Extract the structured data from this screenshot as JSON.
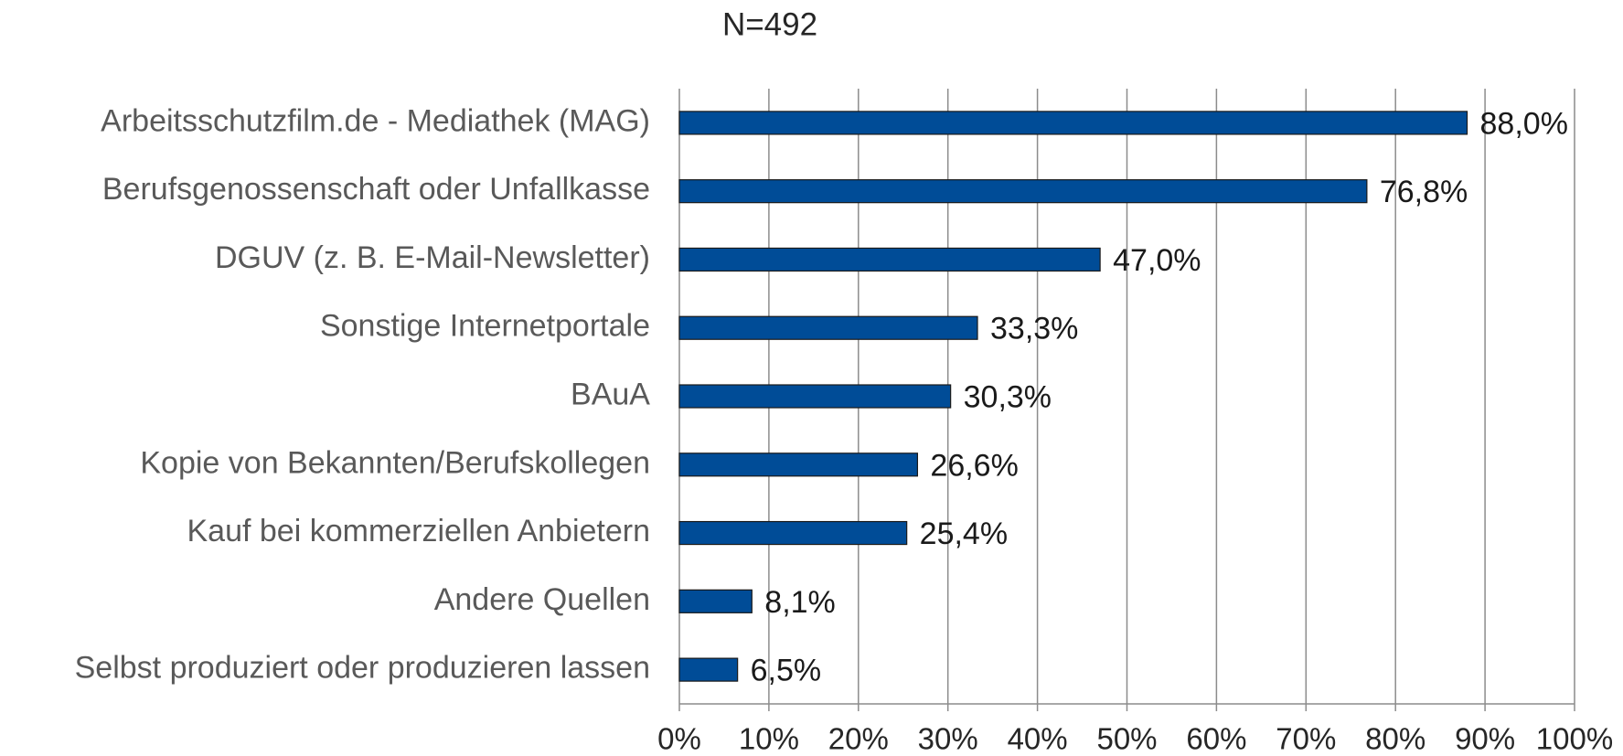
{
  "chart_data": {
    "type": "bar",
    "orientation": "horizontal",
    "title": "N=492",
    "categories": [
      "Arbeitsschutzfilm.de - Mediathek (MAG)",
      "Berufsgenossenschaft oder Unfallkasse",
      "DGUV (z. B. E-Mail-Newsletter)",
      "Sonstige Internetportale",
      "BAuA",
      "Kopie von Bekannten/Berufskollegen",
      "Kauf bei kommerziellen Anbietern",
      "Andere Quellen",
      "Selbst produziert oder produzieren lassen"
    ],
    "values": [
      88.0,
      76.8,
      47.0,
      33.3,
      30.3,
      26.6,
      25.4,
      8.1,
      6.5
    ],
    "value_labels": [
      "88,0%",
      "76,8%",
      "47,0%",
      "33,3%",
      "30,3%",
      "26,6%",
      "25,4%",
      "8,1%",
      "6,5%"
    ],
    "color": "#004c97",
    "xlim": [
      0,
      100
    ],
    "xticks": [
      {
        "value": 0,
        "label": "0%"
      },
      {
        "value": 10,
        "label": "10%"
      },
      {
        "value": 20,
        "label": "20%"
      },
      {
        "value": 30,
        "label": "30%"
      },
      {
        "value": 40,
        "label": "40%"
      },
      {
        "value": 50,
        "label": "50%"
      },
      {
        "value": 60,
        "label": "60%"
      },
      {
        "value": 70,
        "label": "70%"
      },
      {
        "value": 80,
        "label": "80%"
      },
      {
        "value": 90,
        "label": "90%"
      },
      {
        "value": 100,
        "label": "100%"
      }
    ],
    "grid": true
  }
}
